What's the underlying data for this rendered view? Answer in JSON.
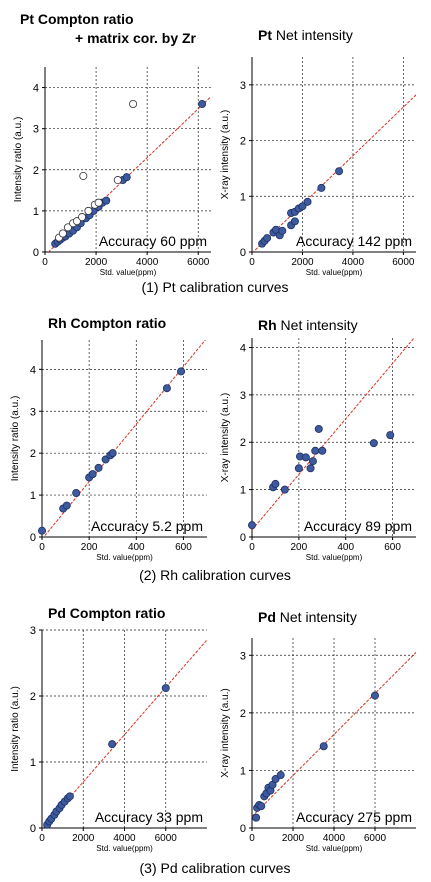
{
  "captions": {
    "pt": "(1) Pt calibration curves",
    "rh": "(2) Rh calibration curves",
    "pd": "(3) Pd calibration curves"
  },
  "chart_data": [
    {
      "id": "pt-compton",
      "type": "scatter",
      "title_bold": "Pt Compton ratio",
      "title_plain": "",
      "title_line2": "+ matrix cor. by Zr",
      "xlabel": "Std. value(ppm)",
      "ylabel": "Intensity ratio (a.u.)",
      "xlim": [
        0,
        6500
      ],
      "ylim": [
        0,
        4.5
      ],
      "xticks": [
        0,
        2000,
        4000,
        6000
      ],
      "yticks": [
        0,
        1,
        2,
        3,
        4
      ],
      "grid": true,
      "annotation": "Accuracy 60 ppm",
      "fit_line": [
        [
          0,
          -0.08
        ],
        [
          6500,
          3.78
        ]
      ],
      "series": [
        {
          "marker": "filled",
          "points": [
            [
              400,
              0.2
            ],
            [
              500,
              0.25
            ],
            [
              600,
              0.3
            ],
            [
              700,
              0.35
            ],
            [
              800,
              0.38
            ],
            [
              950,
              0.45
            ],
            [
              1100,
              0.52
            ],
            [
              1250,
              0.6
            ],
            [
              1400,
              0.7
            ],
            [
              1600,
              0.82
            ],
            [
              1750,
              0.9
            ],
            [
              1900,
              1.0
            ],
            [
              2100,
              1.1
            ],
            [
              2250,
              1.2
            ],
            [
              2400,
              1.25
            ],
            [
              3050,
              1.75
            ],
            [
              3200,
              1.82
            ],
            [
              6150,
              3.6
            ]
          ]
        },
        {
          "marker": "open",
          "points": [
            [
              550,
              0.35
            ],
            [
              700,
              0.45
            ],
            [
              900,
              0.6
            ],
            [
              1100,
              0.7
            ],
            [
              1250,
              0.75
            ],
            [
              1450,
              0.85
            ],
            [
              1700,
              1.0
            ],
            [
              1950,
              1.15
            ],
            [
              2100,
              1.2
            ],
            [
              1500,
              1.85
            ],
            [
              2850,
              1.75
            ],
            [
              3450,
              3.6
            ]
          ]
        }
      ]
    },
    {
      "id": "pt-net",
      "type": "scatter",
      "title_bold": "Pt",
      "title_plain": " Net intensity",
      "title_line2": "",
      "xlabel": "Std. value(ppm)",
      "ylabel": "X-ray intensity (a.u.)",
      "xlim": [
        0,
        6500
      ],
      "ylim": [
        0,
        3.5
      ],
      "xticks": [
        0,
        2000,
        4000,
        6000
      ],
      "yticks": [
        0,
        1,
        2,
        3
      ],
      "grid": true,
      "annotation": "Accuracy 142 ppm",
      "fit_line": [
        [
          0,
          -0.02
        ],
        [
          6500,
          2.82
        ]
      ],
      "series": [
        {
          "marker": "filled",
          "points": [
            [
              400,
              0.15
            ],
            [
              500,
              0.2
            ],
            [
              600,
              0.25
            ],
            [
              850,
              0.35
            ],
            [
              950,
              0.4
            ],
            [
              1100,
              0.3
            ],
            [
              1200,
              0.38
            ],
            [
              1550,
              0.48
            ],
            [
              1700,
              0.55
            ],
            [
              1550,
              0.7
            ],
            [
              1700,
              0.72
            ],
            [
              1850,
              0.78
            ],
            [
              2000,
              0.82
            ],
            [
              2200,
              0.9
            ],
            [
              2750,
              1.15
            ],
            [
              3450,
              1.45
            ]
          ]
        }
      ]
    },
    {
      "id": "rh-compton",
      "type": "scatter",
      "title_bold": "Rh Compton ratio",
      "title_plain": "",
      "title_line2": "",
      "xlabel": "Std. value(ppm)",
      "ylabel": "Intensity ratio (a.u.)",
      "xlim": [
        0,
        700
      ],
      "ylim": [
        0,
        4.7
      ],
      "xticks": [
        0,
        200,
        400,
        600
      ],
      "yticks": [
        0,
        1,
        2,
        3,
        4
      ],
      "grid": true,
      "annotation": "Accuracy 5.2 ppm",
      "fit_line": [
        [
          0,
          -0.05
        ],
        [
          700,
          4.75
        ]
      ],
      "series": [
        {
          "marker": "filled",
          "points": [
            [
              0,
              0.15
            ],
            [
              90,
              0.68
            ],
            [
              105,
              0.75
            ],
            [
              145,
              1.05
            ],
            [
              200,
              1.42
            ],
            [
              215,
              1.5
            ],
            [
              240,
              1.65
            ],
            [
              270,
              1.85
            ],
            [
              290,
              1.95
            ],
            [
              300,
              2.0
            ],
            [
              530,
              3.55
            ],
            [
              590,
              3.95
            ]
          ]
        }
      ]
    },
    {
      "id": "rh-net",
      "type": "scatter",
      "title_bold": "Rh",
      "title_plain": " Net intensity",
      "title_line2": "",
      "xlabel": "Std. value(ppm)",
      "ylabel": "X-ray intensity (a.u.)",
      "xlim": [
        0,
        700
      ],
      "ylim": [
        0,
        4.2
      ],
      "xticks": [
        0,
        200,
        400,
        600
      ],
      "yticks": [
        0,
        1,
        2,
        3,
        4
      ],
      "grid": true,
      "annotation": "Accuracy 89 ppm",
      "fit_line": [
        [
          0,
          0.15
        ],
        [
          700,
          4.25
        ]
      ],
      "series": [
        {
          "marker": "filled",
          "points": [
            [
              0,
              0.25
            ],
            [
              90,
              1.05
            ],
            [
              100,
              1.12
            ],
            [
              140,
              1.0
            ],
            [
              200,
              1.45
            ],
            [
              205,
              1.7
            ],
            [
              230,
              1.68
            ],
            [
              250,
              1.45
            ],
            [
              260,
              1.6
            ],
            [
              270,
              1.82
            ],
            [
              285,
              2.28
            ],
            [
              300,
              1.82
            ],
            [
              520,
              1.98
            ],
            [
              590,
              2.15
            ]
          ]
        }
      ]
    },
    {
      "id": "pd-compton",
      "type": "scatter",
      "title_bold": "Pd Compton ratio",
      "title_plain": "",
      "title_line2": "",
      "xlabel": "Std. value(ppm)",
      "ylabel": "Intensity ratio (a.u.)",
      "xlim": [
        0,
        8000
      ],
      "ylim": [
        0,
        3
      ],
      "xticks": [
        0,
        2000,
        4000,
        6000
      ],
      "yticks": [
        0,
        1,
        2,
        3
      ],
      "grid": true,
      "annotation": "Accuracy 33 ppm",
      "fit_line": [
        [
          0,
          -0.02
        ],
        [
          8000,
          2.85
        ]
      ],
      "series": [
        {
          "marker": "filled",
          "points": [
            [
              250,
              0.05
            ],
            [
              350,
              0.1
            ],
            [
              450,
              0.14
            ],
            [
              600,
              0.2
            ],
            [
              700,
              0.25
            ],
            [
              850,
              0.3
            ],
            [
              950,
              0.35
            ],
            [
              1100,
              0.4
            ],
            [
              1250,
              0.45
            ],
            [
              1350,
              0.48
            ],
            [
              3400,
              1.27
            ],
            [
              6000,
              2.12
            ]
          ]
        }
      ]
    },
    {
      "id": "pd-net",
      "type": "scatter",
      "title_bold": "Pd",
      "title_plain": " Net intensity",
      "title_line2": "",
      "xlabel": "Std. value(ppm)",
      "ylabel": "X-ray intensity (a.u.)",
      "xlim": [
        0,
        8000
      ],
      "ylim": [
        0,
        3.3
      ],
      "xticks": [
        0,
        2000,
        4000,
        6000
      ],
      "yticks": [
        0,
        1,
        2,
        3
      ],
      "grid": true,
      "annotation": "Accuracy 275 ppm",
      "fit_line": [
        [
          0,
          0.2
        ],
        [
          8000,
          3.05
        ]
      ],
      "series": [
        {
          "marker": "filled",
          "points": [
            [
              200,
              0.18
            ],
            [
              250,
              0.35
            ],
            [
              350,
              0.4
            ],
            [
              450,
              0.38
            ],
            [
              600,
              0.55
            ],
            [
              700,
              0.6
            ],
            [
              800,
              0.7
            ],
            [
              900,
              0.65
            ],
            [
              1000,
              0.75
            ],
            [
              1150,
              0.85
            ],
            [
              1400,
              0.92
            ],
            [
              3500,
              1.42
            ],
            [
              6000,
              2.3
            ]
          ]
        }
      ]
    }
  ]
}
